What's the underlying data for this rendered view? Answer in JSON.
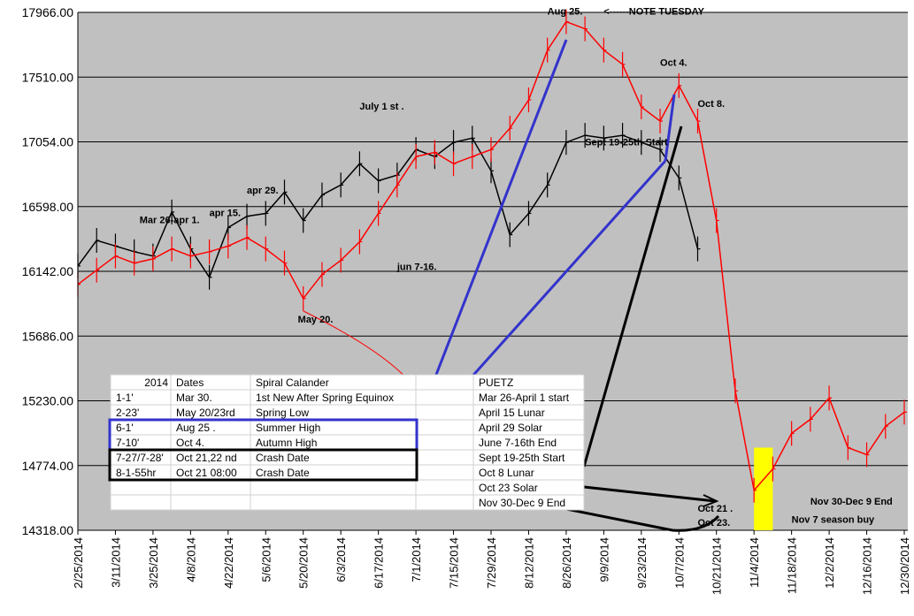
{
  "chart_data": {
    "type": "line",
    "title": "",
    "xlabel": "",
    "ylabel": "",
    "ylim": [
      14318,
      17966
    ],
    "y_ticks": [
      "17966.00",
      "17510.00",
      "17054.00",
      "16598.00",
      "16142.00",
      "15686.00",
      "15230.00",
      "14774.00",
      "14318.00"
    ],
    "x_ticks": [
      "2/25/2014",
      "3/11/2014",
      "3/25/2014",
      "4/8/2014",
      "4/22/2014",
      "5/6/2014",
      "5/20/2014",
      "6/3/2014",
      "6/17/2014",
      "7/1/2014",
      "7/15/2014",
      "7/29/2014",
      "8/12/2014",
      "8/26/2014",
      "9/9/2014",
      "9/23/2014",
      "10/7/2014",
      "10/21/2014",
      "11/4/2014",
      "11/18/2014",
      "12/2/2014",
      "12/16/2014",
      "12/30/2014"
    ],
    "grid": true,
    "background": "#c0c0c0",
    "series": [
      {
        "color": "#000000",
        "points": [
          [
            "2/25/2014",
            16180
          ],
          [
            "3/4/2014",
            16360
          ],
          [
            "3/11/2014",
            16320
          ],
          [
            "3/18/2014",
            16280
          ],
          [
            "3/25/2014",
            16250
          ],
          [
            "4/1/2014",
            16560
          ],
          [
            "4/8/2014",
            16300
          ],
          [
            "4/15/2014",
            16100
          ],
          [
            "4/22/2014",
            16450
          ],
          [
            "4/29/2014",
            16530
          ],
          [
            "5/6/2014",
            16550
          ],
          [
            "5/13/2014",
            16700
          ],
          [
            "5/20/2014",
            16500
          ],
          [
            "5/27/2014",
            16680
          ],
          [
            "6/3/2014",
            16750
          ],
          [
            "6/10/2014",
            16900
          ],
          [
            "6/17/2014",
            16780
          ],
          [
            "6/24/2014",
            16820
          ],
          [
            "7/1/2014",
            17000
          ],
          [
            "7/8/2014",
            16950
          ],
          [
            "7/15/2014",
            17050
          ],
          [
            "7/22/2014",
            17080
          ],
          [
            "7/29/2014",
            16850
          ],
          [
            "8/5/2014",
            16400
          ],
          [
            "8/12/2014",
            16550
          ],
          [
            "8/19/2014",
            16750
          ],
          [
            "8/26/2014",
            17050
          ],
          [
            "9/2/2014",
            17100
          ],
          [
            "9/9/2014",
            17080
          ],
          [
            "9/16/2014",
            17100
          ],
          [
            "9/23/2014",
            17050
          ],
          [
            "9/30/2014",
            17000
          ],
          [
            "10/7/2014",
            16800
          ],
          [
            "10/14/2014",
            16300
          ]
        ]
      },
      {
        "color": "#ff0000",
        "points": [
          [
            "2/25/2014",
            16050
          ],
          [
            "3/4/2014",
            16150
          ],
          [
            "3/11/2014",
            16250
          ],
          [
            "3/18/2014",
            16200
          ],
          [
            "3/25/2014",
            16230
          ],
          [
            "4/1/2014",
            16300
          ],
          [
            "4/8/2014",
            16250
          ],
          [
            "4/15/2014",
            16280
          ],
          [
            "4/22/2014",
            16320
          ],
          [
            "4/29/2014",
            16380
          ],
          [
            "5/6/2014",
            16300
          ],
          [
            "5/13/2014",
            16200
          ],
          [
            "5/20/2014",
            15950
          ],
          [
            "5/27/2014",
            16120
          ],
          [
            "6/3/2014",
            16220
          ],
          [
            "6/10/2014",
            16350
          ],
          [
            "6/17/2014",
            16550
          ],
          [
            "6/24/2014",
            16750
          ],
          [
            "7/1/2014",
            16950
          ],
          [
            "7/8/2014",
            16980
          ],
          [
            "7/15/2014",
            16900
          ],
          [
            "7/22/2014",
            16950
          ],
          [
            "7/29/2014",
            17000
          ],
          [
            "8/5/2014",
            17150
          ],
          [
            "8/12/2014",
            17350
          ],
          [
            "8/19/2014",
            17700
          ],
          [
            "8/26/2014",
            17900
          ],
          [
            "9/2/2014",
            17850
          ],
          [
            "9/9/2014",
            17700
          ],
          [
            "9/16/2014",
            17600
          ],
          [
            "9/23/2014",
            17300
          ],
          [
            "9/30/2014",
            17200
          ],
          [
            "10/7/2014",
            17450
          ],
          [
            "10/14/2014",
            17200
          ],
          [
            "10/21/2014",
            16500
          ],
          [
            "10/28/2014",
            15300
          ],
          [
            "11/4/2014",
            14600
          ],
          [
            "11/11/2014",
            14750
          ],
          [
            "11/18/2014",
            15000
          ],
          [
            "11/25/2014",
            15100
          ],
          [
            "12/2/2014",
            15250
          ],
          [
            "12/9/2014",
            14900
          ],
          [
            "12/16/2014",
            14850
          ],
          [
            "12/23/2014",
            15050
          ],
          [
            "12/30/2014",
            15150
          ]
        ]
      }
    ],
    "annotations": [
      {
        "text": "Aug 25.",
        "x": "8/19/2014",
        "y": 17950
      },
      {
        "text": "<------NOTE TUESDAY",
        "x": "9/9/2014",
        "y": 17950
      },
      {
        "text": "Oct 4.",
        "x": "9/30/2014",
        "y": 17590
      },
      {
        "text": "Oct 8.",
        "x": "10/14/2014",
        "y": 17300
      },
      {
        "text": "July 1 st .",
        "x": "6/10/2014",
        "y": 17280
      },
      {
        "text": "Sept 19-25th Start",
        "x": "9/2/2014",
        "y": 17030
      },
      {
        "text": "apr 29.",
        "x": "4/29/2014",
        "y": 16690
      },
      {
        "text": "apr 15.",
        "x": "4/15/2014",
        "y": 16530
      },
      {
        "text": "Mar 26-apr 1.",
        "x": "3/20/2014",
        "y": 16480
      },
      {
        "text": "jun 7-16.",
        "x": "6/24/2014",
        "y": 16150
      },
      {
        "text": "May 20.",
        "x": "5/18/2014",
        "y": 15780
      },
      {
        "text": "Oct 21 .",
        "x": "10/14/2014",
        "y": 14450
      },
      {
        "text": "Oct 23.",
        "x": "10/14/2014",
        "y": 14350
      },
      {
        "text": "Nov 30-Dec 9 End",
        "x": "11/25/2014",
        "y": 14500
      },
      {
        "text": "Nov 7 season buy",
        "x": "11/18/2014",
        "y": 14370
      }
    ],
    "highlight": {
      "x_start": "11/4/2014",
      "x_end": "11/11/2014",
      "y_start": 14318,
      "y_end": 14900,
      "color": "#ffff00"
    },
    "table": {
      "header": [
        "2014",
        "Dates",
        "Spiral Calander",
        "",
        "PUETZ"
      ],
      "rows": [
        [
          "1-1'",
          "Mar 30.",
          "1st New After Spring Equinox",
          "",
          "Mar 26-April 1 start"
        ],
        [
          "2-23'",
          "May 20/23rd",
          "Spring Low",
          "",
          "April 15 Lunar"
        ],
        [
          "6-1'",
          "Aug 25 .",
          "Summer High",
          "",
          "April 29 Solar"
        ],
        [
          "7-10'",
          "Oct 4.",
          "Autumn High",
          "",
          "June 7-16th End"
        ],
        [
          "7-27/7-28'",
          "Oct 21,22 nd",
          "Crash Date",
          "",
          "Sept 19-25th Start"
        ],
        [
          "8-1-55hr",
          "Oct 21 08:00",
          "Crash Date",
          "",
          "Oct 8 Lunar"
        ],
        [
          "",
          "",
          "",
          "",
          "Oct 23 Solar"
        ],
        [
          "",
          "",
          "",
          "",
          "Nov 30-Dec 9 End"
        ]
      ]
    }
  }
}
